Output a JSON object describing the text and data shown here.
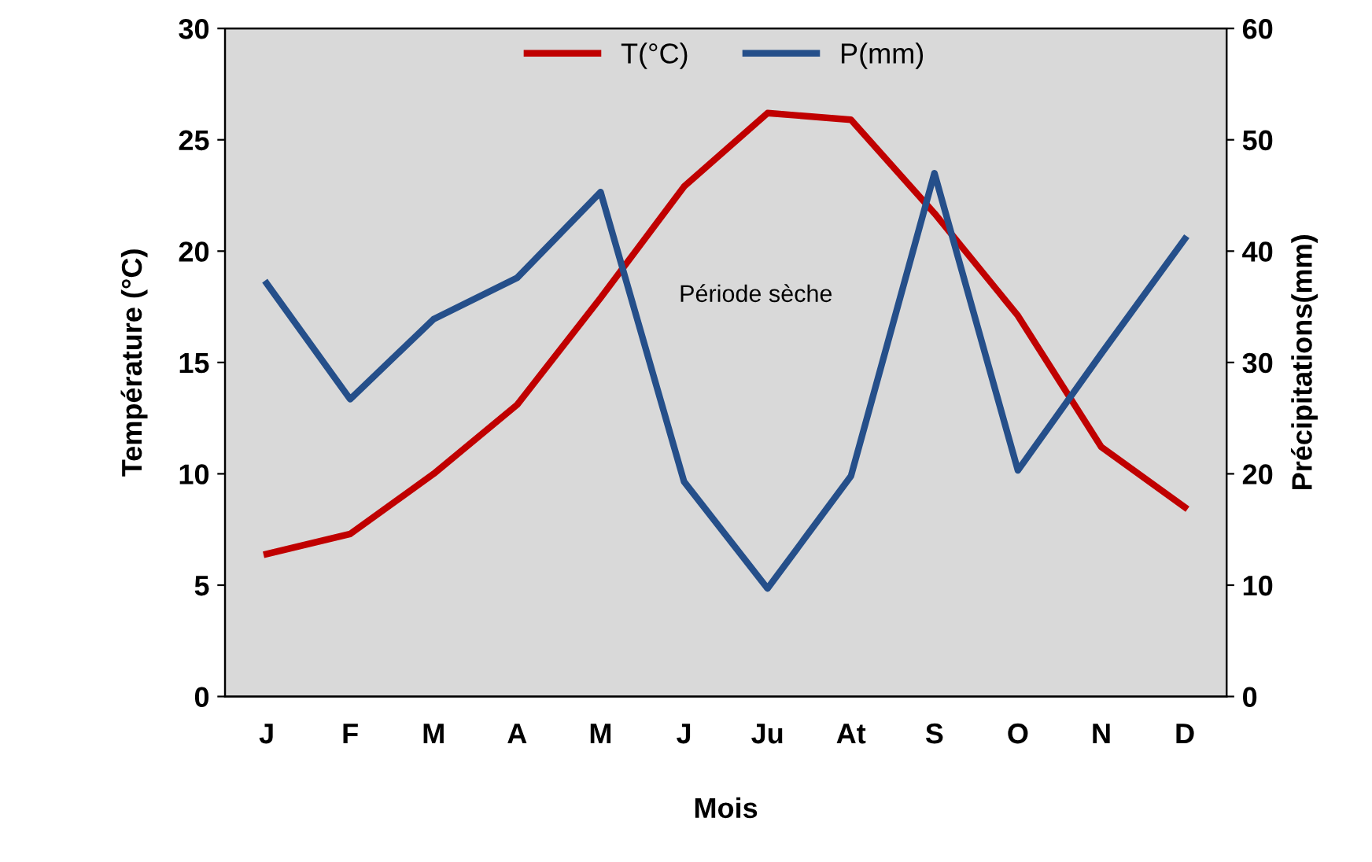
{
  "chart_data": {
    "type": "line",
    "xlabel": "Mois",
    "ylabel": "Température (°C)",
    "y2label": "Précipitations(mm)",
    "categories": [
      "J",
      "F",
      "M",
      "A",
      "M",
      "J",
      "Ju",
      "At",
      "S",
      "O",
      "N",
      "D"
    ],
    "series": [
      {
        "name": "T(°C)",
        "color": "#c00000",
        "values": [
          6.4,
          7.3,
          10.0,
          13.1,
          17.9,
          22.9,
          26.2,
          25.9,
          21.7,
          17.1,
          11.2,
          8.5
        ]
      },
      {
        "name": "P(mm)",
        "color": "#254f8a",
        "axis": "y2",
        "values": [
          37.1,
          26.7,
          33.9,
          37.6,
          45.3,
          19.3,
          9.7,
          19.8,
          47.0,
          20.3,
          30.8,
          41.1
        ]
      }
    ],
    "ylim": [
      0,
      30
    ],
    "yticks": [
      0,
      5,
      10,
      15,
      20,
      25,
      30
    ],
    "y2lim": [
      0,
      60
    ],
    "y2ticks": [
      0,
      10,
      20,
      30,
      40,
      50,
      60
    ],
    "annotations": [
      "Période sèche"
    ],
    "grid": false,
    "legend": "top",
    "marker": "none",
    "line_style": "solid"
  }
}
